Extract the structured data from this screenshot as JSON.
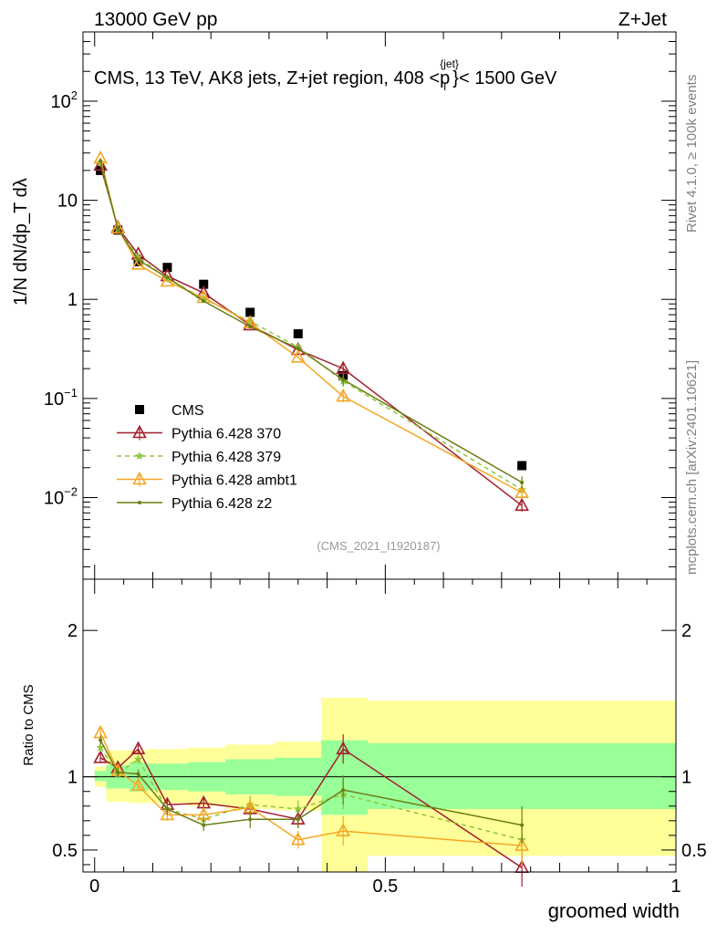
{
  "header": {
    "energy_label": "13000 GeV pp",
    "process_label": "Z+Jet"
  },
  "side_labels": {
    "rivet": "Rivet 4.1.0, ≥ 100k events",
    "source": "mcplots.cern.ch [arXiv:2401.10621]"
  },
  "analysis_tag": "(CMS_2021_I1920187)",
  "chart_data": [
    {
      "type": "line",
      "scale": "log",
      "title": "CMS, 13 TeV, AK8 jets, Z+jet region, 408 <p",
      "title_sup": "{jet}",
      "title_sub": "T",
      "title_end": "}< 1500 GeV",
      "ylabel": "1/N dN/dp_T dλ",
      "ylim": [
        0.0015,
        500
      ],
      "xlim": [
        -0.02,
        1.0
      ],
      "ytick_labels": [
        "10^-2",
        "10^-1",
        "1",
        "10",
        "10^2"
      ],
      "x": [
        0.01,
        0.04,
        0.075,
        0.125,
        0.1875,
        0.2675,
        0.35,
        0.4275,
        0.735
      ],
      "series": [
        {
          "name": "CMS",
          "color": "#000000",
          "marker": "square",
          "values": [
            20.0,
            5.0,
            2.4,
            2.1,
            1.42,
            0.74,
            0.45,
            0.17,
            0.021
          ]
        },
        {
          "name": "Pythia 6.428 370",
          "color": "#a31f2e",
          "marker": "triangle-open",
          "values": [
            22.5,
            5.3,
            2.85,
            1.72,
            1.16,
            0.55,
            0.31,
            0.2,
            0.0083
          ]
        },
        {
          "name": "Pythia 6.428 379",
          "color": "#8dc63f",
          "marker": "star",
          "dash": "5,4",
          "values": [
            24.0,
            5.1,
            2.65,
            1.62,
            1.02,
            0.6,
            0.33,
            0.15,
            0.012
          ]
        },
        {
          "name": "Pythia 6.428 ambt1",
          "color": "#f5a623",
          "marker": "triangle-open",
          "values": [
            26.5,
            5.2,
            2.25,
            1.52,
            1.04,
            0.58,
            0.26,
            0.105,
            0.0112
          ]
        },
        {
          "name": "Pythia 6.428 z2",
          "color": "#6b7f12",
          "marker": "dot",
          "values": [
            25.0,
            5.15,
            2.5,
            1.66,
            0.96,
            0.53,
            0.32,
            0.155,
            0.0142
          ]
        }
      ]
    },
    {
      "type": "line",
      "ylabel": "Ratio to CMS",
      "xlabel": "groomed width",
      "ylim": [
        0.35,
        2.35
      ],
      "xlim": [
        -0.02,
        1.0
      ],
      "ytick_labels": [
        "0.5",
        "1",
        "2"
      ],
      "xtick_labels": [
        "0",
        "0.5",
        "1"
      ],
      "reference_line": 1,
      "bands": {
        "edges": [
          0.0,
          0.02,
          0.06,
          0.09,
          0.16,
          0.225,
          0.31,
          0.39,
          0.47,
          1.0
        ],
        "inner_lo": [
          0.97,
          0.92,
          0.9,
          0.91,
          0.9,
          0.88,
          0.87,
          0.74,
          0.78
        ],
        "inner_hi": [
          1.04,
          1.08,
          1.1,
          1.09,
          1.1,
          1.12,
          1.13,
          1.25,
          1.23
        ],
        "outer_lo": [
          0.93,
          0.83,
          0.82,
          0.82,
          0.8,
          0.78,
          0.77,
          0.35,
          0.46
        ],
        "outer_hi": [
          1.07,
          1.18,
          1.18,
          1.19,
          1.2,
          1.22,
          1.24,
          1.54,
          1.52
        ],
        "inner_color": "#99ff99",
        "outer_color": "#ffff99"
      },
      "series": [
        {
          "name": "Pythia 6.428 370",
          "color": "#a31f2e",
          "marker": "triangle-open",
          "values": [
            1.13,
            1.06,
            1.19,
            0.81,
            0.82,
            0.78,
            0.71,
            1.19,
            0.38
          ]
        },
        {
          "name": "Pythia 6.428 379",
          "color": "#8dc63f",
          "marker": "star",
          "dash": "5,4",
          "values": [
            1.2,
            1.02,
            1.12,
            0.78,
            0.71,
            0.81,
            0.78,
            0.88,
            0.57
          ]
        },
        {
          "name": "Pythia 6.428 ambt1",
          "color": "#f5a623",
          "marker": "triangle-open",
          "values": [
            1.3,
            1.04,
            0.94,
            0.74,
            0.74,
            0.79,
            0.57,
            0.63,
            0.53
          ]
        },
        {
          "name": "Pythia 6.428 z2",
          "color": "#6b7f12",
          "marker": "dot",
          "values": [
            1.25,
            1.03,
            1.02,
            0.78,
            0.67,
            0.71,
            0.71,
            0.91,
            0.67
          ]
        }
      ]
    }
  ]
}
